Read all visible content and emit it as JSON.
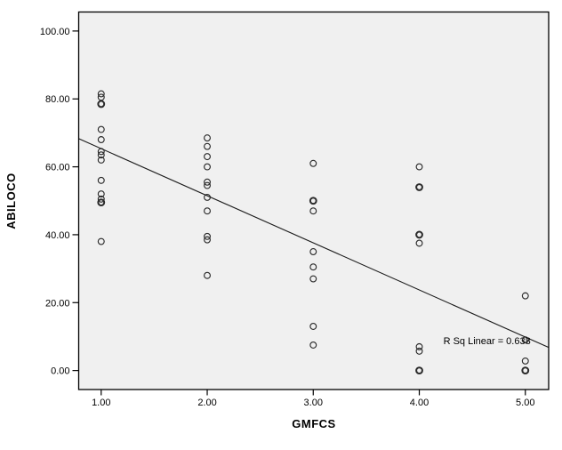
{
  "figure": {
    "background": "#ffffff",
    "plot_background": "#f0f0f0",
    "frame_color": "#000000",
    "marker_color": "#2b2b2b",
    "fit_line_color": "#1a1a1a",
    "text_color": "#000000"
  },
  "chart_data": {
    "type": "scatter",
    "title": "",
    "xlabel": "GMFCS",
    "ylabel": "ABILOCO",
    "grid": false,
    "legend": null,
    "xlim": [
      0.788,
      5.22
    ],
    "ylim": [
      -5.6,
      105.6
    ],
    "x_ticks": [
      {
        "value": 1,
        "label": "1.00"
      },
      {
        "value": 2,
        "label": "2.00"
      },
      {
        "value": 3,
        "label": "3.00"
      },
      {
        "value": 4,
        "label": "4.00"
      },
      {
        "value": 5,
        "label": "5.00"
      }
    ],
    "y_ticks": [
      {
        "value": 0,
        "label": "0.00"
      },
      {
        "value": 20,
        "label": "20.00"
      },
      {
        "value": 40,
        "label": "40.00"
      },
      {
        "value": 60,
        "label": "60.00"
      },
      {
        "value": 80,
        "label": "80.00"
      },
      {
        "value": 100,
        "label": "100.00"
      }
    ],
    "points": [
      {
        "x": 1,
        "y": 81.5
      },
      {
        "x": 1,
        "y": 80.5
      },
      {
        "x": 1,
        "y": 78.5,
        "overlap": true
      },
      {
        "x": 1,
        "y": 71
      },
      {
        "x": 1,
        "y": 68
      },
      {
        "x": 1,
        "y": 64.5
      },
      {
        "x": 1,
        "y": 63.5
      },
      {
        "x": 1,
        "y": 62
      },
      {
        "x": 1,
        "y": 56
      },
      {
        "x": 1,
        "y": 52
      },
      {
        "x": 1,
        "y": 50.5
      },
      {
        "x": 1,
        "y": 49.5,
        "overlap": true
      },
      {
        "x": 1,
        "y": 38
      },
      {
        "x": 2,
        "y": 68.5
      },
      {
        "x": 2,
        "y": 66
      },
      {
        "x": 2,
        "y": 63
      },
      {
        "x": 2,
        "y": 60
      },
      {
        "x": 2,
        "y": 55.5
      },
      {
        "x": 2,
        "y": 54.5
      },
      {
        "x": 2,
        "y": 51
      },
      {
        "x": 2,
        "y": 47
      },
      {
        "x": 2,
        "y": 39.5
      },
      {
        "x": 2,
        "y": 38.5
      },
      {
        "x": 2,
        "y": 28
      },
      {
        "x": 3,
        "y": 61
      },
      {
        "x": 3,
        "y": 50,
        "overlap": true
      },
      {
        "x": 3,
        "y": 47
      },
      {
        "x": 3,
        "y": 35
      },
      {
        "x": 3,
        "y": 30.5
      },
      {
        "x": 3,
        "y": 27
      },
      {
        "x": 3,
        "y": 13
      },
      {
        "x": 3,
        "y": 7.5
      },
      {
        "x": 4,
        "y": 60
      },
      {
        "x": 4,
        "y": 54,
        "overlap": true
      },
      {
        "x": 4,
        "y": 40,
        "overlap": true
      },
      {
        "x": 4,
        "y": 37.5
      },
      {
        "x": 4,
        "y": 7
      },
      {
        "x": 4,
        "y": 5.7
      },
      {
        "x": 4,
        "y": 0,
        "overlap": true
      },
      {
        "x": 5,
        "y": 22
      },
      {
        "x": 5,
        "y": 9
      },
      {
        "x": 5,
        "y": 2.8
      },
      {
        "x": 5,
        "y": 0,
        "overlap": true
      }
    ],
    "fit_line": {
      "x1": 0.788,
      "y1": 68.3,
      "x2": 5.22,
      "y2": 6.8
    },
    "annotation": {
      "text": "R Sq Linear = 0.638",
      "x": 5.05,
      "y": 8.8,
      "anchor": "end"
    },
    "r_squared": 0.638
  }
}
